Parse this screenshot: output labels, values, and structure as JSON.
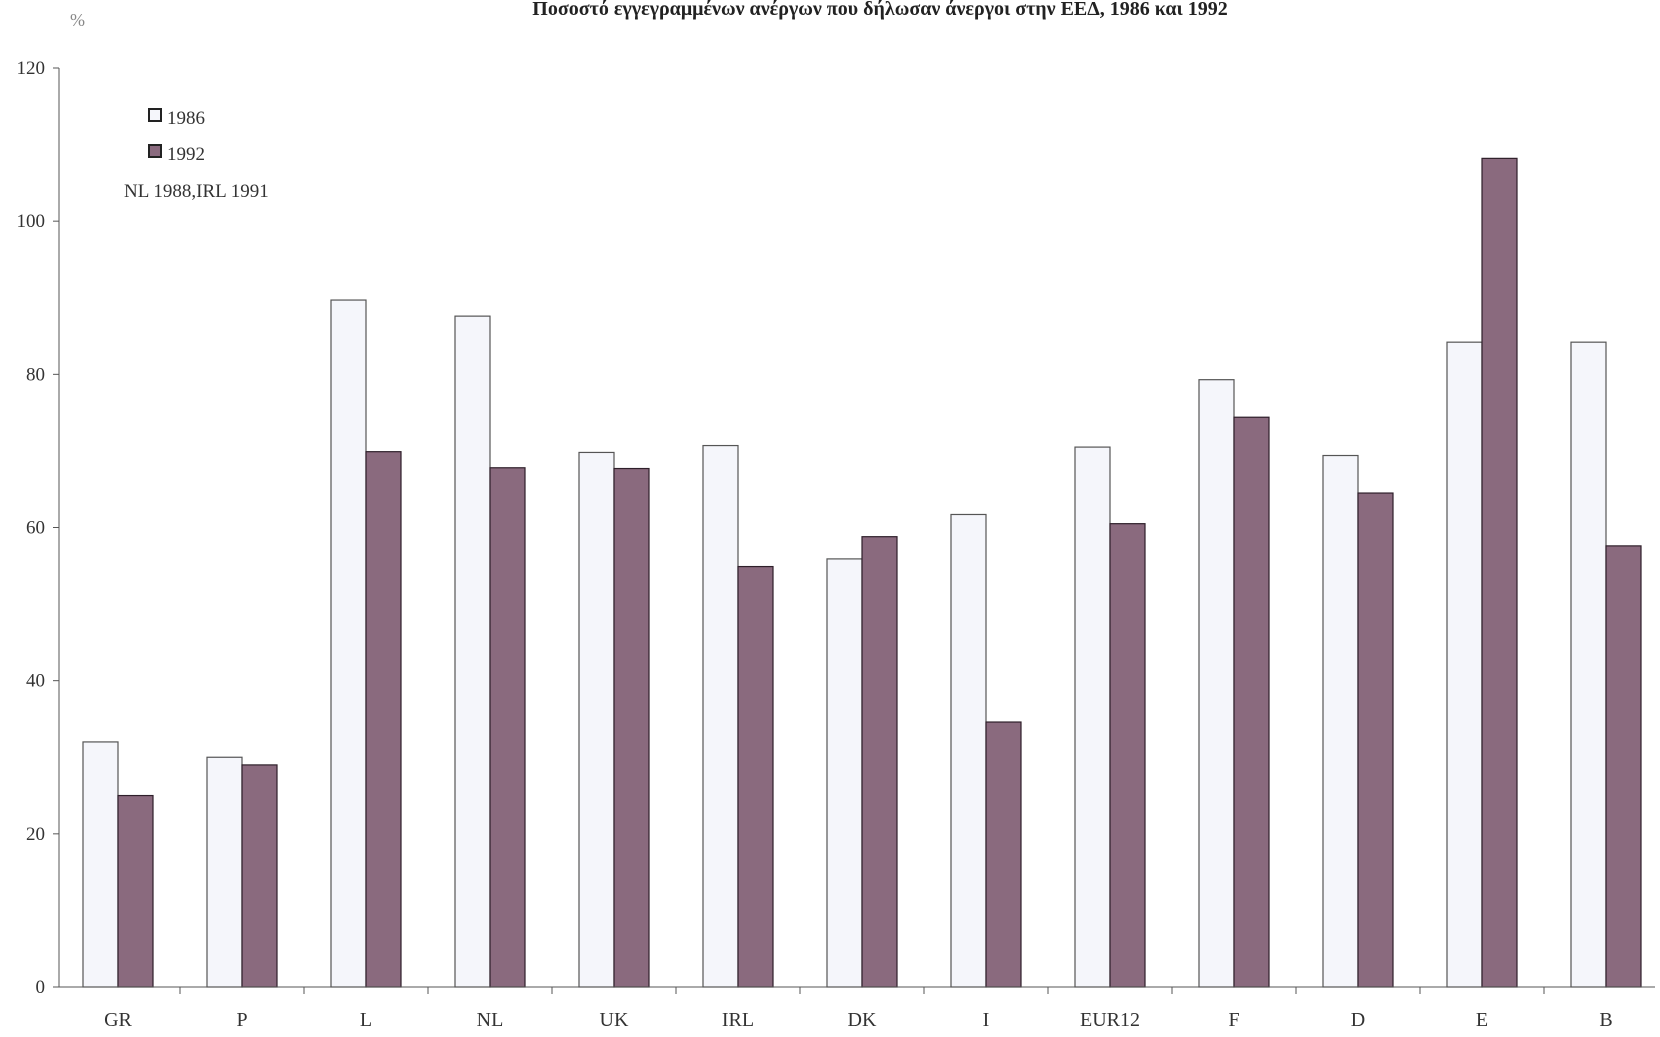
{
  "chart_data": {
    "type": "bar",
    "title": "Ποσοστό εγγεγραμμένων ανέργων που δήλωσαν άνεργοι στην ΕΕΔ, 1986 και 1992",
    "unit_label": "%",
    "note": "NL 1988,IRL 1991",
    "categories": [
      "GR",
      "P",
      "L",
      "NL",
      "UK",
      "IRL",
      "DK",
      "I",
      "EUR12",
      "F",
      "D",
      "E",
      "B"
    ],
    "series": [
      {
        "name": "1986",
        "color": "#f5f6fb",
        "values": [
          32,
          30,
          89.7,
          87.6,
          69.8,
          70.7,
          55.9,
          61.7,
          70.5,
          79.3,
          69.4,
          84.2,
          84.2
        ]
      },
      {
        "name": "1992",
        "color": "#8a6a7e",
        "values": [
          25,
          29,
          69.9,
          67.8,
          67.7,
          54.9,
          58.8,
          34.6,
          60.5,
          74.4,
          64.5,
          108.2,
          57.6
        ]
      }
    ],
    "ylim": [
      0,
      120
    ],
    "yticks": [
      0,
      20,
      40,
      60,
      80,
      100,
      120
    ],
    "grid": false,
    "legend": "top-left"
  }
}
